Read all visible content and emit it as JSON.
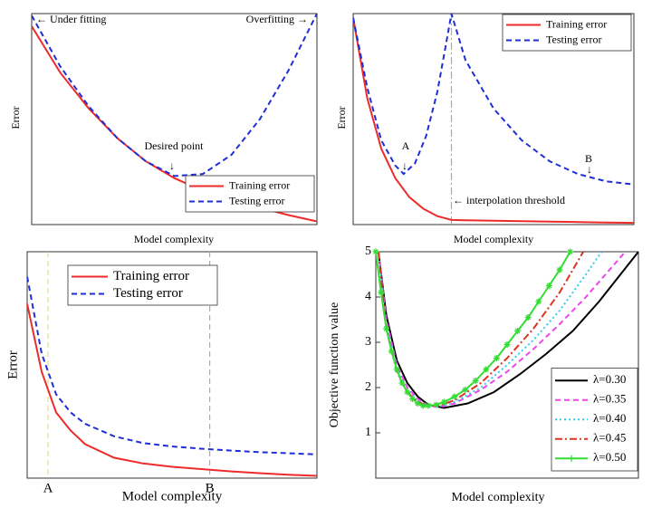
{
  "chart_data": [
    {
      "type": "line",
      "xlabel": "Model complexity",
      "ylabel": "Error",
      "xlim": [
        0,
        10
      ],
      "ylim": [
        0,
        10
      ],
      "legend": "lower right",
      "annotations": [
        "← Under fitting",
        "Overfitting →",
        "Desired point",
        "↓"
      ],
      "series": [
        {
          "name": "Training error",
          "color": "#ee2b2b",
          "dash": "solid",
          "x": [
            0,
            1,
            2,
            3,
            4,
            5,
            6,
            7,
            8,
            9,
            10
          ],
          "values": [
            9.4,
            7.2,
            5.5,
            4.1,
            3.0,
            2.2,
            1.6,
            1.15,
            0.8,
            0.45,
            0.15
          ]
        },
        {
          "name": "Testing error",
          "color": "#1f2fd6",
          "dash": "dashed",
          "x": [
            0,
            1,
            2,
            3,
            4,
            5,
            6,
            7,
            8,
            9,
            10
          ],
          "values": [
            9.9,
            7.5,
            5.6,
            4.1,
            3.0,
            2.3,
            2.4,
            3.3,
            5.0,
            7.3,
            10.0
          ]
        }
      ]
    },
    {
      "type": "line",
      "xlabel": "Model complexity",
      "ylabel": "Error",
      "xlim": [
        0,
        10
      ],
      "ylim": [
        0,
        10
      ],
      "legend": "upper right",
      "annotations": [
        "A",
        "↓",
        "B",
        "↓",
        "← interpolation threshold"
      ],
      "vlines": [
        {
          "x": 3.5,
          "color": "#aaaaaa",
          "dash": "dashdot"
        }
      ],
      "series": [
        {
          "name": "Training error",
          "color": "#ee2b2b",
          "dash": "solid",
          "x": [
            0,
            0.5,
            1,
            1.5,
            2,
            2.5,
            3,
            3.5,
            4,
            5,
            6,
            7,
            8,
            9,
            10
          ],
          "values": [
            9.8,
            6.0,
            3.6,
            2.2,
            1.3,
            0.75,
            0.4,
            0.22,
            0.2,
            0.18,
            0.16,
            0.14,
            0.12,
            0.1,
            0.08
          ]
        },
        {
          "name": "Testing error",
          "color": "#1f2fd6",
          "dash": "dashed",
          "x": [
            0,
            0.5,
            1,
            1.5,
            1.8,
            2.2,
            2.6,
            3,
            3.3,
            3.5,
            4,
            5,
            6,
            7,
            8,
            9,
            10
          ],
          "values": [
            9.8,
            6.5,
            4.0,
            2.8,
            2.4,
            2.9,
            4.2,
            6.3,
            8.5,
            10,
            7.8,
            5.5,
            4.0,
            3.0,
            2.4,
            2.05,
            1.9
          ]
        }
      ]
    },
    {
      "type": "line",
      "xlabel": "Model complexity",
      "ylabel": "Error",
      "xlim": [
        0,
        10
      ],
      "ylim": [
        0,
        10
      ],
      "legend": "upper left",
      "xticks": [
        {
          "value": 0.72,
          "label": "A"
        },
        {
          "value": 6.3,
          "label": "B"
        }
      ],
      "xtick_line_colors": [
        "#e8d890",
        "#aaaaaa"
      ],
      "series": [
        {
          "name": "Training error",
          "color": "#ee2b2b",
          "dash": "solid",
          "x": [
            0,
            0.5,
            1,
            1.5,
            2,
            3,
            4,
            5,
            6,
            7,
            8,
            9,
            10
          ],
          "values": [
            7.7,
            4.7,
            2.9,
            2.1,
            1.5,
            0.9,
            0.65,
            0.5,
            0.4,
            0.3,
            0.22,
            0.15,
            0.1
          ]
        },
        {
          "name": "Testing error",
          "color": "#1f2fd6",
          "dash": "dashed",
          "x": [
            0,
            0.5,
            1,
            1.5,
            2,
            3,
            4,
            5,
            6,
            7,
            8,
            9,
            10
          ],
          "values": [
            8.9,
            5.5,
            3.7,
            2.9,
            2.4,
            1.85,
            1.55,
            1.4,
            1.3,
            1.22,
            1.15,
            1.1,
            1.05
          ]
        }
      ]
    },
    {
      "type": "line",
      "xlabel": "Model complexity",
      "ylabel": "Objective function value",
      "xlim": [
        0,
        10
      ],
      "ylim": [
        0,
        5
      ],
      "yticks": [
        1,
        2,
        3,
        4,
        5
      ],
      "legend": "lower right",
      "series": [
        {
          "name": "λ=0.30",
          "color": "#000000",
          "dash": "solid",
          "x": [
            0.1,
            0.4,
            0.8,
            1.2,
            1.6,
            2.0,
            2.6,
            3.5,
            4.5,
            5.5,
            6.5,
            7.5,
            8.5,
            10
          ],
          "values": [
            5,
            3.6,
            2.6,
            2.1,
            1.8,
            1.62,
            1.55,
            1.65,
            1.9,
            2.3,
            2.75,
            3.25,
            3.9,
            5
          ]
        },
        {
          "name": "λ=0.35",
          "color": "#ee44ee",
          "dash": "dashed",
          "x": [
            0.1,
            0.4,
            0.8,
            1.2,
            1.6,
            2.0,
            2.4,
            3,
            4,
            5,
            6,
            7,
            8,
            9.5
          ],
          "values": [
            5,
            3.5,
            2.5,
            2.0,
            1.75,
            1.6,
            1.57,
            1.65,
            1.95,
            2.35,
            2.85,
            3.4,
            4.0,
            5
          ]
        },
        {
          "name": "λ=0.40",
          "color": "#33ccee",
          "dash": "dotted",
          "x": [
            0.1,
            0.4,
            0.8,
            1.2,
            1.6,
            2.0,
            2.4,
            3,
            4,
            5,
            6,
            7,
            8,
            8.6
          ],
          "values": [
            5,
            3.4,
            2.4,
            1.95,
            1.7,
            1.6,
            1.58,
            1.68,
            2.0,
            2.5,
            3.05,
            3.7,
            4.5,
            5
          ]
        },
        {
          "name": "λ=0.45",
          "color": "#dd3322",
          "dash": "dashdot",
          "x": [
            0.1,
            0.4,
            0.8,
            1.2,
            1.6,
            2.0,
            2.4,
            3,
            4,
            5,
            6,
            7,
            7.9
          ],
          "values": [
            5,
            3.3,
            2.35,
            1.9,
            1.68,
            1.6,
            1.6,
            1.72,
            2.1,
            2.65,
            3.3,
            4.1,
            5
          ]
        },
        {
          "name": "λ=0.50",
          "color": "#33dd33",
          "dash": "solid",
          "marker": "star",
          "x": [
            0,
            0.2,
            0.4,
            0.6,
            0.8,
            1.0,
            1.2,
            1.4,
            1.6,
            1.8,
            2.0,
            2.3,
            2.6,
            3.0,
            3.4,
            3.8,
            4.2,
            4.6,
            5.0,
            5.4,
            5.8,
            6.2,
            6.6,
            7.0,
            7.4
          ],
          "values": [
            5,
            4.1,
            3.3,
            2.8,
            2.4,
            2.1,
            1.9,
            1.75,
            1.65,
            1.6,
            1.6,
            1.62,
            1.68,
            1.8,
            1.95,
            2.15,
            2.4,
            2.65,
            2.95,
            3.25,
            3.55,
            3.9,
            4.25,
            4.6,
            5.0
          ]
        }
      ]
    }
  ]
}
